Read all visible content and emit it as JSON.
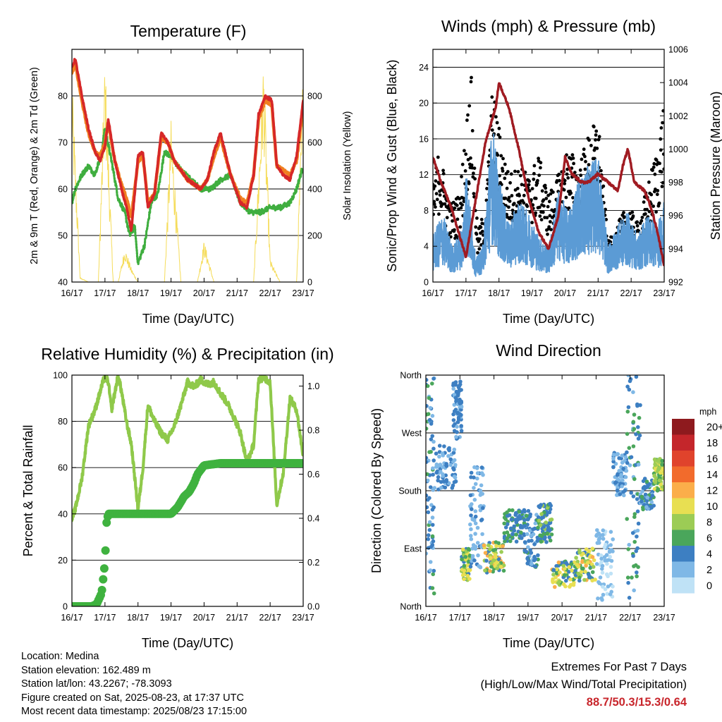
{
  "colors": {
    "t2m": "#d62728",
    "t9m": "#f07f20",
    "td": "#3fae3f",
    "solar": "#f5dc5a",
    "sonic": "#5b9bd5",
    "gust": "#000000",
    "pressure": "#a01b22",
    "rh": "#8fc94a",
    "precip": "#3fb23f",
    "extremes": "#c8262c"
  },
  "chart_data": [
    {
      "id": "temperature",
      "type": "line",
      "title": "Temperature (F)",
      "xlabel": "Time (Day/UTC)",
      "ylabel": "2m & 9m T (Red, Orange) & 2m Td (Green)",
      "y2label": "Solar Insolation (Yellow)",
      "xlim": [
        0,
        7
      ],
      "ylim": [
        40,
        90
      ],
      "y2lim": [
        0,
        1000
      ],
      "x_ticks": [
        "16/17",
        "17/17",
        "18/17",
        "19/17",
        "20/17",
        "21/17",
        "22/17",
        "23/17"
      ],
      "y_ticks": [
        40,
        50,
        60,
        70,
        80
      ],
      "y2_ticks": [
        0,
        200,
        400,
        600,
        800
      ],
      "grid": "horizontal",
      "series": [
        {
          "key": "t2m",
          "x": [
            0,
            0.1,
            0.3,
            0.5,
            0.7,
            0.85,
            1.0,
            1.1,
            1.3,
            1.5,
            1.65,
            1.8,
            2.0,
            2.15,
            2.3,
            2.5,
            2.7,
            2.9,
            3.1,
            3.3,
            3.5,
            3.7,
            3.9,
            4.1,
            4.3,
            4.5,
            4.8,
            5.1,
            5.3,
            5.5,
            5.65,
            5.85,
            6.05,
            6.2,
            6.4,
            6.6,
            6.8,
            7.0
          ],
          "y": [
            86,
            88,
            80,
            73,
            68,
            66,
            69,
            75,
            66,
            60,
            56,
            51,
            67,
            68,
            56,
            59,
            72,
            70,
            66,
            64,
            62,
            61,
            60,
            62,
            68,
            72,
            63,
            57,
            56,
            63,
            76,
            80,
            79,
            65,
            63,
            62,
            67,
            79
          ]
        },
        {
          "key": "t9m",
          "x": [
            0,
            0.1,
            0.3,
            0.5,
            0.7,
            0.85,
            1.0,
            1.1,
            1.3,
            1.5,
            1.65,
            1.8,
            2.0,
            2.15,
            2.3,
            2.5,
            2.7,
            2.9,
            3.1,
            3.3,
            3.5,
            3.7,
            3.9,
            4.1,
            4.3,
            4.5,
            4.8,
            5.1,
            5.3,
            5.5,
            5.65,
            5.85,
            6.05,
            6.2,
            6.4,
            6.6,
            6.8,
            7.0
          ],
          "y": [
            85,
            87,
            79,
            72,
            68,
            67,
            70,
            74,
            66,
            61,
            58,
            54,
            66,
            67,
            57,
            59,
            71,
            70,
            66,
            64,
            62,
            61,
            60,
            62,
            67,
            71,
            63,
            58,
            57,
            63,
            75,
            79,
            78,
            65,
            64,
            63,
            66,
            78
          ]
        },
        {
          "key": "td",
          "x": [
            0,
            0.1,
            0.3,
            0.5,
            0.7,
            0.9,
            1.0,
            1.2,
            1.4,
            1.6,
            1.75,
            1.9,
            2.0,
            2.2,
            2.4,
            2.6,
            2.8,
            3.0,
            3.3,
            3.6,
            3.9,
            4.2,
            4.5,
            4.8,
            5.1,
            5.4,
            5.7,
            6.0,
            6.3,
            6.6,
            6.8,
            7.0
          ],
          "y": [
            57,
            60,
            63,
            65,
            63,
            68,
            73,
            66,
            58,
            55,
            50,
            52,
            44,
            48,
            57,
            59,
            68,
            67,
            64,
            62,
            60,
            60,
            62,
            63,
            57,
            55,
            55,
            56,
            56,
            57,
            60,
            65
          ]
        },
        {
          "key": "solar",
          "axis": "y2",
          "x": [
            0,
            0.25,
            0.5,
            0.8,
            1.0,
            1.25,
            1.4,
            1.6,
            1.8,
            2.0,
            2.4,
            2.8,
            3.0,
            3.3,
            3.5,
            3.8,
            4.0,
            4.3,
            4.5,
            4.8,
            5.0,
            5.3,
            5.5,
            5.8,
            6.0,
            6.3,
            6.5,
            6.8,
            7.0
          ],
          "y": [
            900,
            20,
            0,
            0,
            980,
            0,
            0,
            150,
            60,
            0,
            0,
            0,
            700,
            0,
            0,
            0,
            180,
            0,
            0,
            0,
            0,
            0,
            0,
            980,
            100,
            0,
            0,
            0,
            960
          ]
        }
      ]
    },
    {
      "id": "winds",
      "type": "line",
      "title": "Winds (mph) & Pressure (mb)",
      "xlabel": "Time (Day/UTC)",
      "ylabel": "Sonic/Prop Wind & Gust (Blue, Black)",
      "y2label": "Station Pressure (Maroon)",
      "xlim": [
        0,
        7
      ],
      "ylim": [
        0,
        26
      ],
      "y2lim": [
        992,
        1006
      ],
      "x_ticks": [
        "16/17",
        "17/17",
        "18/17",
        "19/17",
        "20/17",
        "21/17",
        "22/17",
        "23/17"
      ],
      "y_ticks": [
        0,
        4,
        8,
        12,
        16,
        20,
        24
      ],
      "y2_ticks": [
        992,
        994,
        996,
        998,
        1000,
        1002,
        1004,
        1006
      ],
      "grid": "horizontal",
      "series": [
        {
          "key": "sonic",
          "x": [
            0,
            0.3,
            0.6,
            0.9,
            1.0,
            1.3,
            1.5,
            1.8,
            2.0,
            2.3,
            2.6,
            2.9,
            3.2,
            3.5,
            3.8,
            4.1,
            4.4,
            4.7,
            5.0,
            5.3,
            5.6,
            5.9,
            6.2,
            6.5,
            6.8,
            7.0
          ],
          "y": [
            4,
            6,
            3,
            5,
            10,
            2,
            3,
            14,
            9,
            5,
            7,
            6,
            4,
            3,
            8,
            6,
            9,
            10,
            11,
            3,
            5,
            6,
            4,
            6,
            5,
            7
          ]
        },
        {
          "key": "gust",
          "x": [
            0,
            0.2,
            0.5,
            0.8,
            1.0,
            1.15,
            1.35,
            1.6,
            1.8,
            2.0,
            2.3,
            2.6,
            2.9,
            3.2,
            3.5,
            3.8,
            4.1,
            4.4,
            4.7,
            5.0,
            5.3,
            5.6,
            5.9,
            6.2,
            6.5,
            6.8,
            7.0
          ],
          "y": [
            10,
            14,
            8,
            9,
            16,
            22,
            5,
            8,
            20,
            16,
            11,
            12,
            11,
            13,
            9,
            11,
            14,
            12,
            15,
            17,
            4,
            6,
            8,
            6,
            10,
            14,
            19
          ]
        },
        {
          "key": "pressure",
          "axis": "y2",
          "x": [
            0,
            0.25,
            0.55,
            0.85,
            1.0,
            1.3,
            1.6,
            1.9,
            2.0,
            2.3,
            2.6,
            2.9,
            3.2,
            3.5,
            3.8,
            4.0,
            4.2,
            4.5,
            4.7,
            5.0,
            5.3,
            5.6,
            5.75,
            5.9,
            6.1,
            6.4,
            6.6,
            6.8,
            7.0
          ],
          "y": [
            999.5,
            998,
            996.5,
            994.5,
            993.5,
            997,
            1000.5,
            1002.5,
            1004,
            1002.5,
            1000,
            997,
            995,
            994,
            996,
            999.5,
            998.5,
            998,
            998,
            998.5,
            998,
            997.5,
            999,
            1000,
            998,
            997.5,
            996.5,
            995,
            993
          ]
        }
      ]
    },
    {
      "id": "humidity",
      "type": "line",
      "title": "Relative Humidity (%) & Precipitation (in)",
      "xlabel": "Time (Day/UTC)",
      "ylabel": "Percent & Total Rainfall",
      "xlim": [
        0,
        7
      ],
      "ylim": [
        0,
        100
      ],
      "y2lim": [
        0,
        1.05
      ],
      "x_ticks": [
        "16/17",
        "17/17",
        "18/17",
        "19/17",
        "20/17",
        "21/17",
        "22/17",
        "23/17"
      ],
      "y_ticks": [
        0,
        20,
        40,
        60,
        80,
        100
      ],
      "y2_ticks": [
        "0.0",
        "0.2",
        "0.4",
        "0.6",
        "0.8",
        "1.0"
      ],
      "grid": "horizontal",
      "series": [
        {
          "key": "rh",
          "x": [
            0,
            0.1,
            0.3,
            0.5,
            0.7,
            0.9,
            1.0,
            1.1,
            1.2,
            1.4,
            1.5,
            1.65,
            1.8,
            2.0,
            2.15,
            2.3,
            2.5,
            2.7,
            2.9,
            3.1,
            3.3,
            3.5,
            3.7,
            3.9,
            4.1,
            4.3,
            4.5,
            4.7,
            4.9,
            5.1,
            5.3,
            5.5,
            5.65,
            5.8,
            6.0,
            6.2,
            6.4,
            6.6,
            6.8,
            7.0
          ],
          "y": [
            38,
            42,
            55,
            78,
            85,
            95,
            100,
            97,
            85,
            100,
            93,
            80,
            70,
            42,
            60,
            87,
            80,
            75,
            72,
            78,
            87,
            97,
            95,
            98,
            96,
            97,
            92,
            88,
            82,
            75,
            62,
            70,
            98,
            99,
            97,
            44,
            58,
            90,
            85,
            65
          ]
        },
        {
          "key": "precip",
          "axis": "y2",
          "x": [
            0,
            0.6,
            0.75,
            0.9,
            1.0,
            1.05,
            1.1,
            1.3,
            1.6,
            2.0,
            2.5,
            3.0,
            3.2,
            3.4,
            3.55,
            3.7,
            3.8,
            4.0,
            4.5,
            5.0,
            5.5,
            6.0,
            6.5,
            7.0
          ],
          "y": [
            0,
            0,
            0.01,
            0.06,
            0.2,
            0.38,
            0.42,
            0.42,
            0.42,
            0.42,
            0.42,
            0.42,
            0.45,
            0.5,
            0.52,
            0.56,
            0.6,
            0.64,
            0.65,
            0.65,
            0.65,
            0.65,
            0.65,
            0.65
          ]
        }
      ]
    },
    {
      "id": "wind_direction",
      "type": "scatter",
      "title": "Wind Direction",
      "xlabel": "Time (Day/UTC)",
      "ylabel": "Direction (Colored By Speed)",
      "xlim": [
        0,
        7
      ],
      "ylim": [
        0,
        360
      ],
      "x_ticks": [
        "16/17",
        "17/17",
        "18/17",
        "19/17",
        "20/17",
        "21/17",
        "22/17",
        "23/17"
      ],
      "y_ticks": [
        "North",
        "East",
        "South",
        "West",
        "North"
      ],
      "grid": "horizontal",
      "legend": {
        "title": "mph",
        "labels": [
          "20+",
          "18",
          "16",
          "14",
          "12",
          "10",
          "8",
          "6",
          "4",
          "2",
          "0"
        ],
        "colors": [
          "#8e1a1e",
          "#c4262b",
          "#e0432c",
          "#f26b2c",
          "#fbae4a",
          "#e8df52",
          "#9ccc55",
          "#4aa65b",
          "#3d7fc2",
          "#7fb8e6",
          "#bfe2f6"
        ]
      },
      "clusters": [
        {
          "x": [
            0.0,
            0.25
          ],
          "y": [
            10,
            360
          ],
          "speed": [
            2,
            6
          ]
        },
        {
          "x": [
            0.2,
            0.9
          ],
          "y": [
            180,
            250
          ],
          "speed": [
            2,
            5
          ]
        },
        {
          "x": [
            0.8,
            1.05
          ],
          "y": [
            260,
            350
          ],
          "speed": [
            2,
            5
          ]
        },
        {
          "x": [
            1.05,
            1.3
          ],
          "y": [
            40,
            90
          ],
          "speed": [
            4,
            11
          ]
        },
        {
          "x": [
            1.3,
            1.7
          ],
          "y": [
            60,
            220
          ],
          "speed": [
            1,
            4
          ]
        },
        {
          "x": [
            1.7,
            2.3
          ],
          "y": [
            50,
            100
          ],
          "speed": [
            3,
            13
          ]
        },
        {
          "x": [
            2.3,
            2.9
          ],
          "y": [
            100,
            150
          ],
          "speed": [
            3,
            7
          ]
        },
        {
          "x": [
            2.9,
            3.3
          ],
          "y": [
            60,
            150
          ],
          "speed": [
            2,
            6
          ]
        },
        {
          "x": [
            3.3,
            3.7
          ],
          "y": [
            100,
            160
          ],
          "speed": [
            3,
            8
          ]
        },
        {
          "x": [
            3.7,
            4.4
          ],
          "y": [
            30,
            70
          ],
          "speed": [
            3,
            12
          ]
        },
        {
          "x": [
            4.4,
            5.0
          ],
          "y": [
            40,
            90
          ],
          "speed": [
            4,
            12
          ]
        },
        {
          "x": [
            5.0,
            5.5
          ],
          "y": [
            10,
            120
          ],
          "speed": [
            0,
            3
          ]
        },
        {
          "x": [
            5.5,
            5.9
          ],
          "y": [
            170,
            240
          ],
          "speed": [
            1,
            5
          ]
        },
        {
          "x": [
            5.9,
            6.3
          ],
          "y": [
            10,
            360
          ],
          "speed": [
            2,
            7
          ]
        },
        {
          "x": [
            6.3,
            6.7
          ],
          "y": [
            150,
            200
          ],
          "speed": [
            2,
            6
          ]
        },
        {
          "x": [
            6.7,
            7.0
          ],
          "y": [
            180,
            230
          ],
          "speed": [
            6,
            11
          ]
        }
      ]
    }
  ],
  "info": {
    "location": "Location: Medina",
    "elevation": "Station elevation: 162.489 m",
    "latlon": "Station lat/lon: 43.2267; -78.3093",
    "created": "Figure created on Sat, 2025-08-23, at 17:37 UTC",
    "recent": "Most recent data timestamp: 2025/08/23 17:15:00"
  },
  "extremes": {
    "title": "Extremes For Past 7 Days",
    "subtitle": "(High/Low/Max Wind/Total Precipitation)",
    "values": "88.7/50.3/15.3/0.64"
  }
}
